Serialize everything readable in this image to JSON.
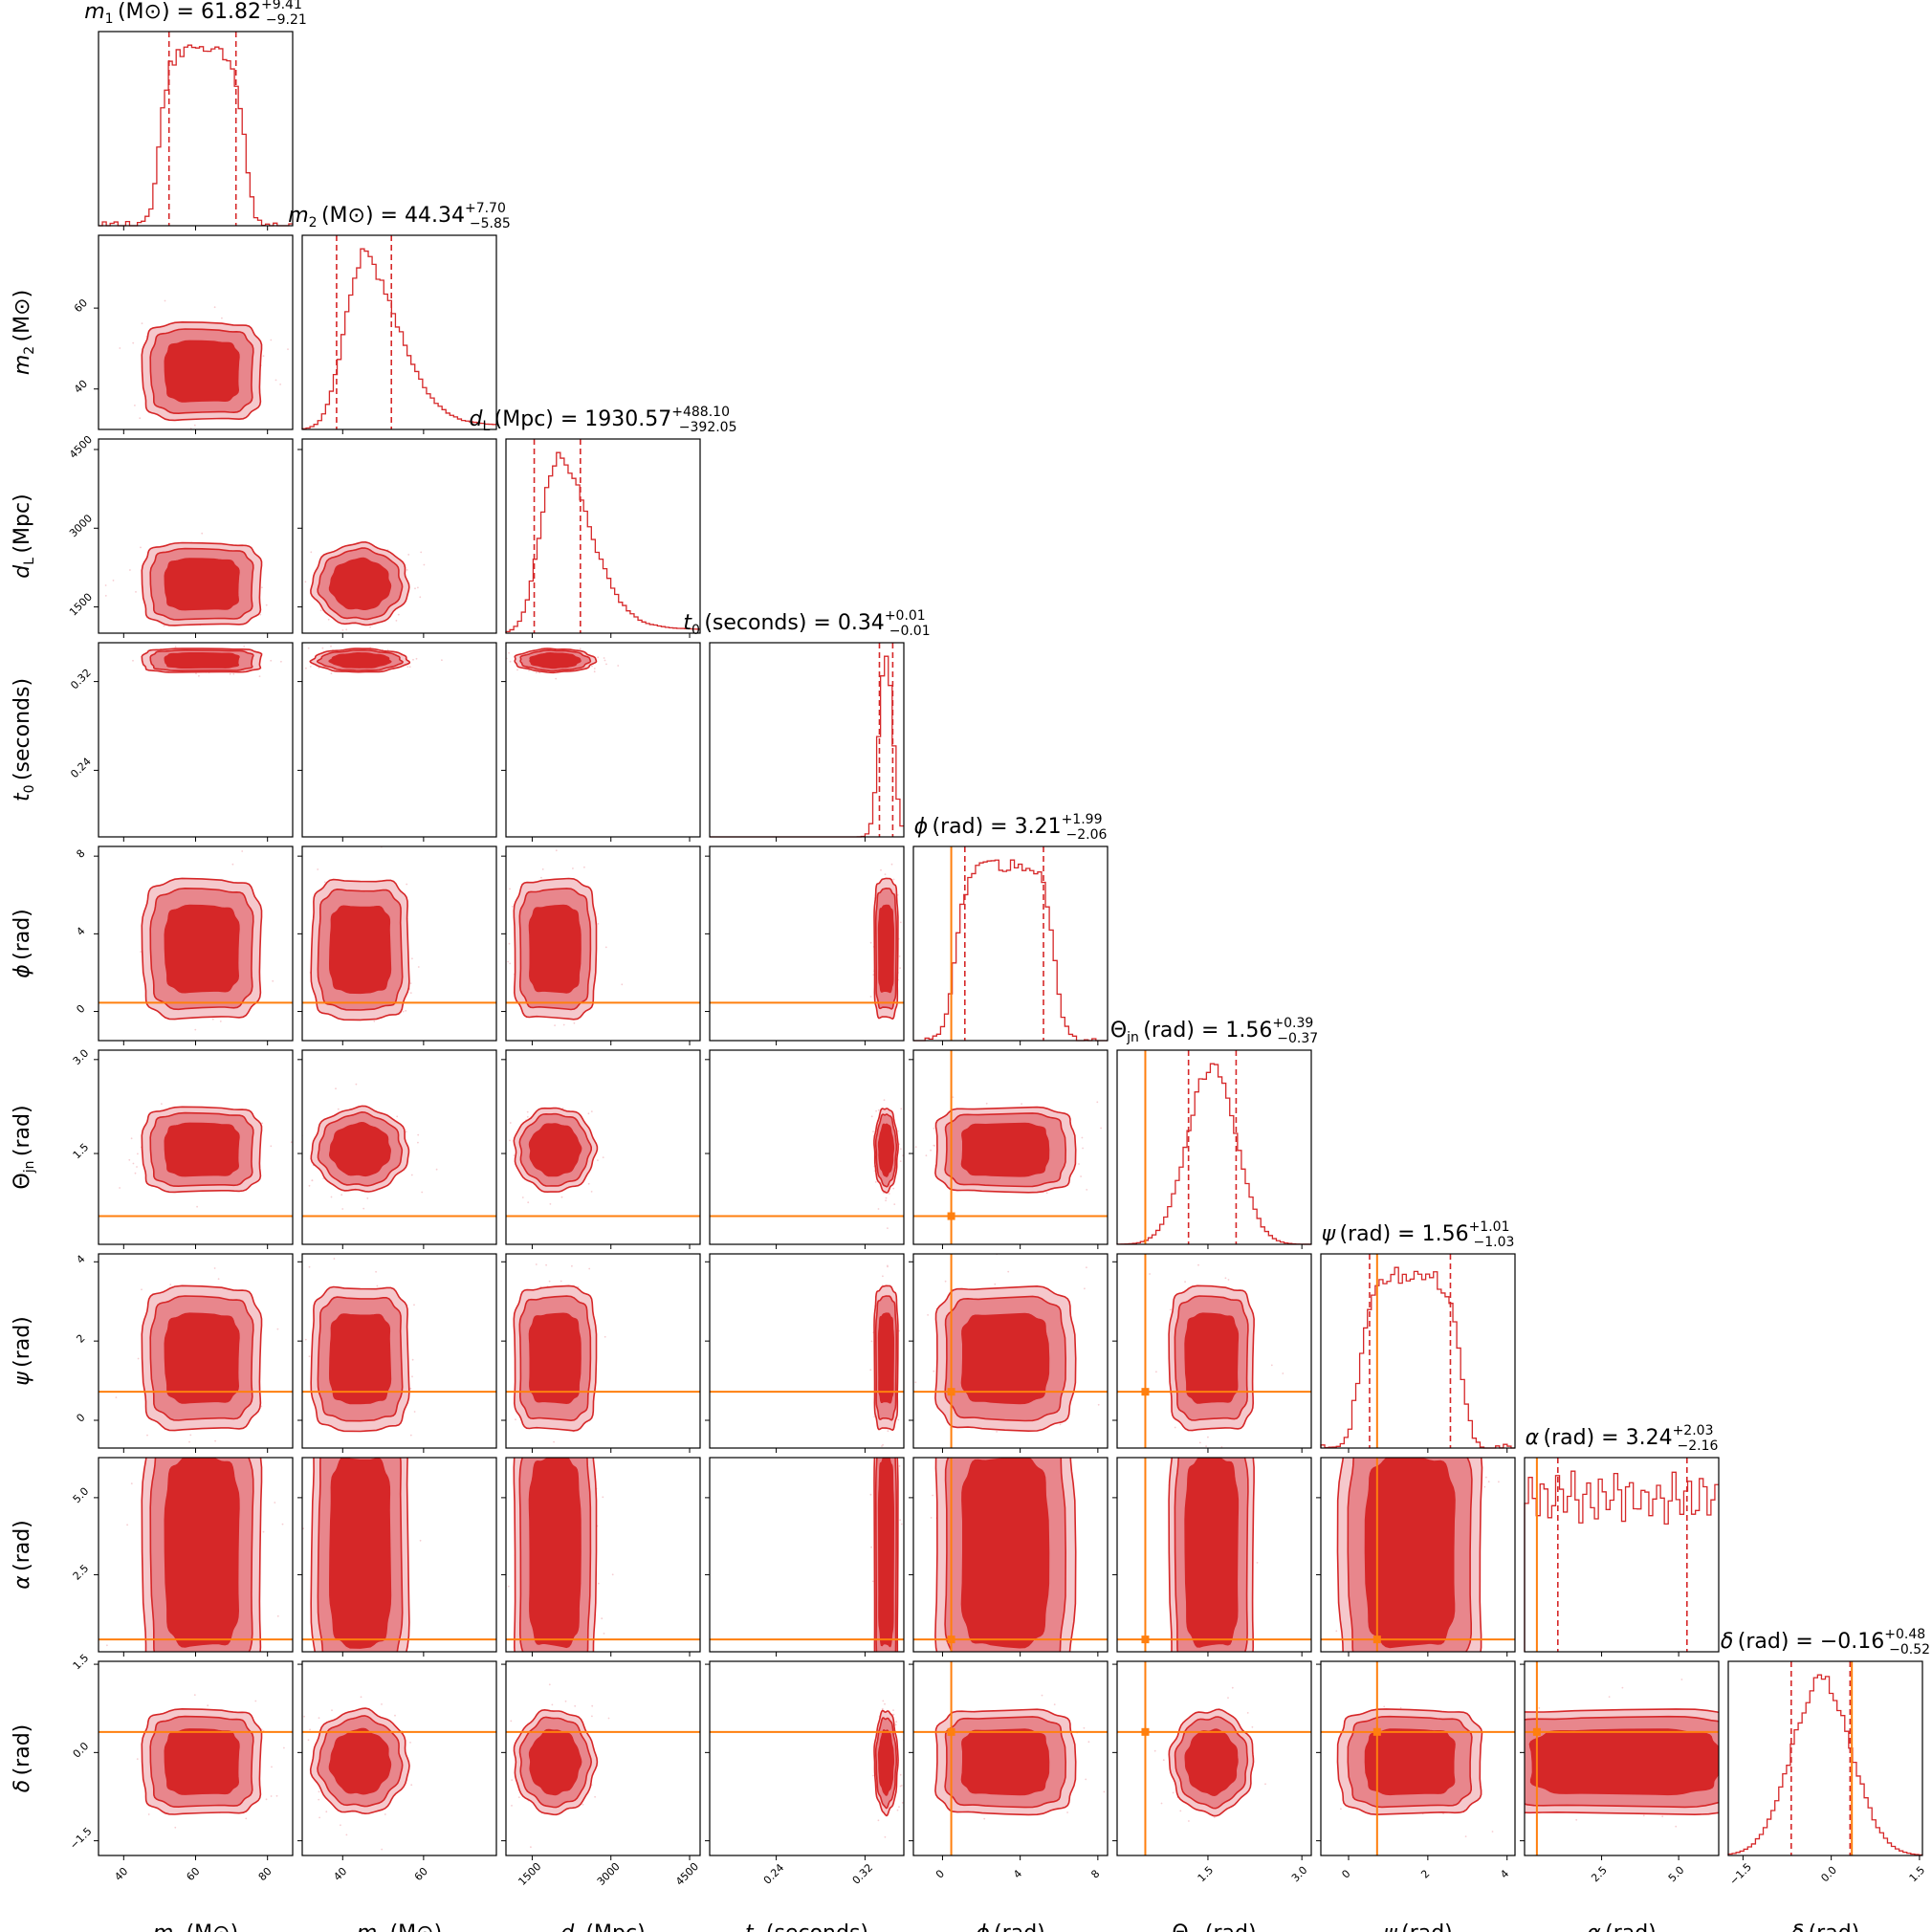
{
  "colors": {
    "posterior": "#d62728",
    "contour_inner": "#d62728",
    "contour_mid": "#e8868c",
    "contour_outer": "#f5c8cc",
    "injection": "#ff7f0e"
  },
  "chart_data": {
    "type": "corner",
    "parameters": [
      {
        "id": "m1",
        "sym": "m",
        "sub": "1",
        "unit": "(M⊙)",
        "axis_label": "m1 (M⊙)",
        "title_value": "61.82",
        "err_up": "+9.41",
        "err_down": "−9.21",
        "range": [
          33,
          87
        ],
        "ticks": [
          40,
          60,
          80
        ],
        "tick_labels": [
          "40",
          "60",
          "80"
        ],
        "median": 61.82,
        "lo": 52.61,
        "hi": 71.23,
        "sigma": 9.2,
        "shape": "flat"
      },
      {
        "id": "m2",
        "sym": "m",
        "sub": "2",
        "unit": "(M⊙)",
        "axis_label": "m2 (M⊙)",
        "title_value": "44.34",
        "err_up": "+7.70",
        "err_down": "−5.85",
        "range": [
          30,
          78
        ],
        "ticks": [
          40,
          60
        ],
        "tick_labels": [
          "40",
          "60"
        ],
        "median": 44.34,
        "lo": 38.49,
        "hi": 52.04,
        "sigma": 6.0,
        "shape": "skew"
      },
      {
        "id": "dl",
        "sym": "d",
        "sub": "L",
        "unit": "(Mpc)",
        "axis_label": "dL (Mpc)",
        "title_value": "1930.57",
        "err_up": "+488.10",
        "err_down": "−392.05",
        "range": [
          1000,
          4700
        ],
        "ticks": [
          1500,
          3000,
          4500
        ],
        "tick_labels": [
          "1500",
          "3000",
          "4500"
        ],
        "median": 1930.57,
        "lo": 1538.52,
        "hi": 2418.67,
        "sigma": 420,
        "shape": "skew"
      },
      {
        "id": "t0",
        "sym": "t",
        "sub": "0",
        "unit": "(seconds)",
        "axis_label": "t0 (seconds)",
        "title_value": "0.34",
        "err_up": "+0.01",
        "err_down": "−0.01",
        "range": [
          0.18,
          0.355
        ],
        "ticks": [
          0.24,
          0.32
        ],
        "tick_labels": [
          "0.24",
          "0.32"
        ],
        "median": 0.339,
        "lo": 0.333,
        "hi": 0.345,
        "sigma": 0.006,
        "shape": "narrow"
      },
      {
        "id": "phi",
        "sym": "ϕ",
        "sub": "",
        "unit": "(rad)",
        "axis_label": "ϕ (rad)",
        "title_value": "3.21",
        "err_up": "+1.99",
        "err_down": "−2.06",
        "range": [
          -1.5,
          8.5
        ],
        "ticks": [
          0,
          4,
          8
        ],
        "tick_labels": [
          "0",
          "4",
          "8"
        ],
        "median": 3.21,
        "lo": 1.15,
        "hi": 5.2,
        "sigma": 2.0,
        "shape": "flat",
        "injection": 0.45
      },
      {
        "id": "theta",
        "sym": "Θ",
        "sub": "jn",
        "unit": "(rad)",
        "axis_label": "Θjn (rad)",
        "title_value": "1.56",
        "err_up": "+0.39",
        "err_down": "−0.37",
        "range": [
          0.05,
          3.15
        ],
        "ticks": [
          1.5,
          3.0
        ],
        "tick_labels": [
          "1.5",
          "3.0"
        ],
        "median": 1.56,
        "lo": 1.19,
        "hi": 1.95,
        "sigma": 0.38,
        "shape": "gauss",
        "injection": 0.5
      },
      {
        "id": "psi",
        "sym": "ψ",
        "sub": "",
        "unit": "(rad)",
        "axis_label": "ψ (rad)",
        "title_value": "1.56",
        "err_up": "+1.01",
        "err_down": "−1.03",
        "range": [
          -0.7,
          4.2
        ],
        "ticks": [
          0,
          2,
          4
        ],
        "tick_labels": [
          "0",
          "2",
          "4"
        ],
        "median": 1.56,
        "lo": 0.53,
        "hi": 2.57,
        "sigma": 1.0,
        "shape": "flat",
        "injection": 0.72
      },
      {
        "id": "alpha",
        "sym": "α",
        "sub": "",
        "unit": "(rad)",
        "axis_label": "α (rad)",
        "title_value": "3.24",
        "err_up": "+2.03",
        "err_down": "−2.16",
        "range": [
          0,
          6.3
        ],
        "ticks": [
          2.5,
          5.0
        ],
        "tick_labels": [
          "2.5",
          "5.0"
        ],
        "median": 3.24,
        "lo": 1.08,
        "hi": 5.27,
        "sigma": 2.1,
        "shape": "flat",
        "injection": 0.4
      },
      {
        "id": "delta",
        "sym": "δ",
        "sub": "",
        "unit": "(rad)",
        "axis_label": "δ (rad)",
        "title_value": "−0.16",
        "err_up": "+0.48",
        "err_down": "−0.52",
        "range": [
          -1.75,
          1.55
        ],
        "ticks": [
          -1.5,
          0.0,
          1.5
        ],
        "tick_labels": [
          "−1.5",
          "0.0",
          "1.5"
        ],
        "median": -0.16,
        "lo": -0.68,
        "hi": 0.32,
        "sigma": 0.5,
        "shape": "gauss",
        "injection": 0.35
      }
    ],
    "contour_levels": [
      "inner",
      "mid",
      "outer"
    ],
    "grid": false,
    "legend": "none"
  }
}
